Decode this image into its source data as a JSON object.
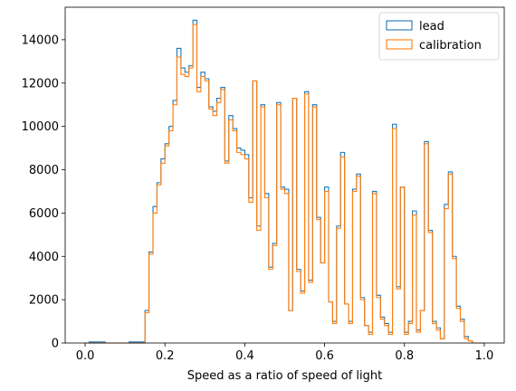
{
  "chart_data": {
    "type": "histogram-step",
    "title": "",
    "xlabel": "Speed as a ratio of speed of light",
    "ylabel": "",
    "xlim": [
      -0.05,
      1.05
    ],
    "ylim": [
      0,
      15500
    ],
    "xticks": [
      0.0,
      0.2,
      0.4,
      0.6,
      0.8,
      1.0
    ],
    "xtick_labels": [
      "0.0",
      "0.2",
      "0.4",
      "0.6",
      "0.8",
      "1.0"
    ],
    "yticks": [
      0,
      2000,
      4000,
      6000,
      8000,
      10000,
      12000,
      14000
    ],
    "ytick_labels": [
      "0",
      "2000",
      "4000",
      "6000",
      "8000",
      "10000",
      "12000",
      "14000"
    ],
    "grid": false,
    "legend_position": "top-right",
    "bins": {
      "start": 0.0,
      "width": 0.01,
      "count": 100
    },
    "series": [
      {
        "name": "lead",
        "color": "#1f77b4",
        "values": [
          0,
          50,
          50,
          50,
          50,
          0,
          0,
          0,
          0,
          0,
          0,
          50,
          50,
          50,
          50,
          1500,
          4200,
          6300,
          7400,
          8500,
          9200,
          10000,
          11200,
          13600,
          12700,
          12500,
          12800,
          14900,
          11800,
          12500,
          12200,
          10900,
          10700,
          11300,
          11800,
          8400,
          10500,
          9900,
          9000,
          8900,
          8700,
          6700,
          12100,
          5400,
          11000,
          6900,
          3500,
          4600,
          11100,
          7200,
          7100,
          1500,
          11300,
          3400,
          2400,
          11600,
          2900,
          11000,
          5800,
          3700,
          7200,
          1900,
          1000,
          5400,
          8800,
          1800,
          1000,
          7100,
          7800,
          2100,
          800,
          500,
          7000,
          2200,
          1200,
          900,
          500,
          10100,
          2600,
          7200,
          500,
          1000,
          6100,
          600,
          1500,
          9300,
          5200,
          1000,
          700,
          200,
          6400,
          7900,
          4000,
          1700,
          1100,
          300,
          100,
          0,
          0,
          0
        ],
        "overrides": {
          "0.15": 1500
        }
      },
      {
        "name": "calibration",
        "color": "#ff7f0e",
        "values": [
          0,
          0,
          0,
          0,
          0,
          0,
          0,
          0,
          0,
          0,
          0,
          0,
          0,
          0,
          0,
          1400,
          4100,
          6000,
          7300,
          8300,
          9100,
          9800,
          11000,
          13200,
          12400,
          12300,
          12700,
          14700,
          11600,
          12300,
          12100,
          10800,
          10500,
          11100,
          11700,
          8300,
          10300,
          9800,
          8800,
          8700,
          8500,
          6500,
          12100,
          5200,
          10900,
          6700,
          3400,
          4500,
          11000,
          7100,
          6900,
          1500,
          11300,
          3300,
          2300,
          11500,
          2800,
          10900,
          5700,
          3700,
          7000,
          1900,
          900,
          5300,
          8600,
          1800,
          900,
          7000,
          7700,
          2000,
          800,
          400,
          6900,
          2100,
          1100,
          800,
          400,
          9900,
          2500,
          7200,
          400,
          900,
          5900,
          500,
          1500,
          9200,
          5100,
          900,
          600,
          200,
          6200,
          7800,
          3900,
          1600,
          1000,
          200,
          100,
          0,
          0,
          0
        ]
      }
    ]
  }
}
